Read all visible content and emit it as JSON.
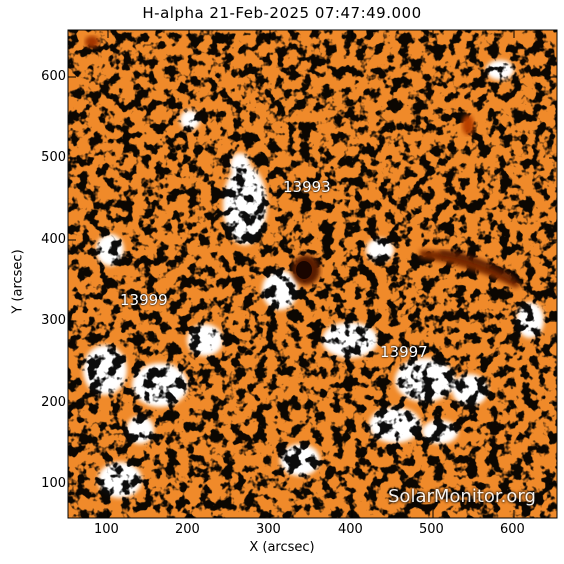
{
  "title": "H-alpha 21-Feb-2025 07:47:49.000",
  "axes": {
    "xlabel": "X (arcsec)",
    "ylabel": "Y (arcsec)",
    "xticks": [
      "100",
      "200",
      "300",
      "400",
      "500",
      "600"
    ],
    "yticks": [
      "600",
      "500",
      "400",
      "300",
      "200",
      "100"
    ]
  },
  "regions": [
    "13993",
    "13999",
    "13997"
  ],
  "watermark": "SolarMonitor.org",
  "colors": {
    "background": "#f08a2a",
    "dark": "#000000",
    "bright": "#ffffff"
  }
}
